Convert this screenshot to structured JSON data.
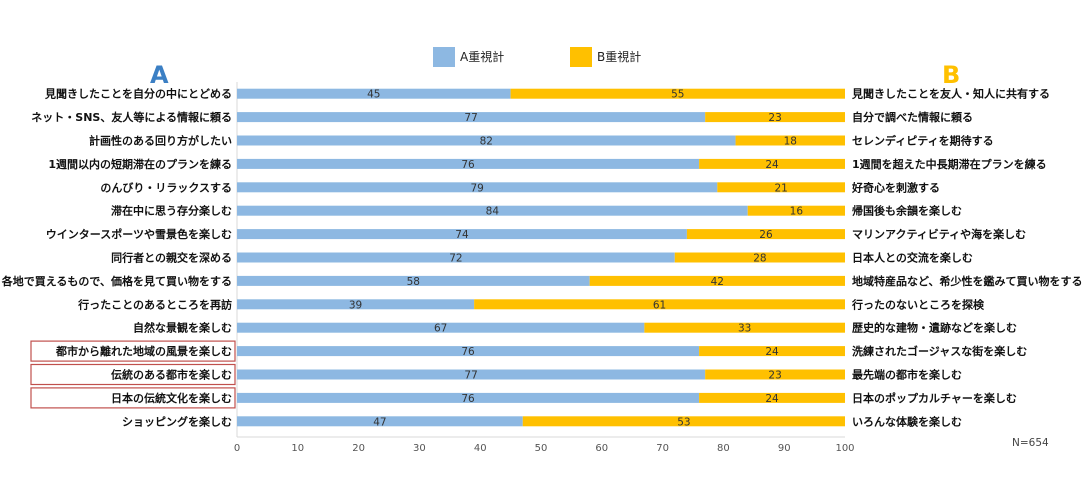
{
  "chart_data": {
    "type": "bar",
    "orientation": "horizontal",
    "stacked": true,
    "side_labels": {
      "a": "A",
      "b": "B"
    },
    "colors": {
      "a": "#8DB8E2",
      "b": "#FFC000",
      "side_a": "#3B7FC4",
      "side_b": "#FFC000",
      "highlight_box": "#C0504D",
      "axis": "#D9D9D9"
    },
    "series": [
      {
        "name": "A重視計",
        "values": [
          45,
          77,
          82,
          76,
          79,
          84,
          74,
          72,
          58,
          39,
          67,
          76,
          77,
          76,
          47
        ]
      },
      {
        "name": "B重視計",
        "values": [
          55,
          23,
          18,
          24,
          21,
          16,
          26,
          28,
          42,
          61,
          33,
          24,
          23,
          24,
          53
        ]
      }
    ],
    "categories_a": [
      "見聞きしたことを自分の中にとどめる",
      "ネット・SNS、友人等による情報に頼る",
      "計画性のある回り方がしたい",
      "1週間以内の短期滞在のプランを練る",
      "のんびり・リラックスする",
      "滞在中に思う存分楽しむ",
      "ウインタースポーツや雪景色を楽しむ",
      "同行者との親交を深める",
      "各地で買えるもので、価格を見て買い物をする",
      "行ったことのあるところを再訪",
      "自然な景観を楽しむ",
      "都市から離れた地域の風景を楽しむ",
      "伝統のある都市を楽しむ",
      "日本の伝統文化を楽しむ",
      "ショッピングを楽しむ"
    ],
    "categories_b": [
      "見聞きしたことを友人・知人に共有する",
      "自分で調べた情報に頼る",
      "セレンディピティを期待する",
      "1週間を超えた中長期滞在プランを練る",
      "好奇心を刺激する",
      "帰国後も余韻を楽しむ",
      "マリンアクティビティや海を楽しむ",
      "日本人との交流を楽しむ",
      "地域特産品など、希少性を鑑みて買い物をする",
      "行ったのないところを探検",
      "歴史的な建物・遺跡などを楽しむ",
      "洗練されたゴージャスな街を楽しむ",
      "最先端の都市を楽しむ",
      "日本のポップカルチャーを楽しむ",
      "いろんな体験を楽しむ"
    ],
    "highlighted_indices": [
      11,
      12,
      13
    ],
    "xlim": [
      0,
      100
    ],
    "xticks": [
      0,
      10,
      20,
      30,
      40,
      50,
      60,
      70,
      80,
      90,
      100
    ],
    "legend_position": "top-center",
    "note": "N=654"
  }
}
